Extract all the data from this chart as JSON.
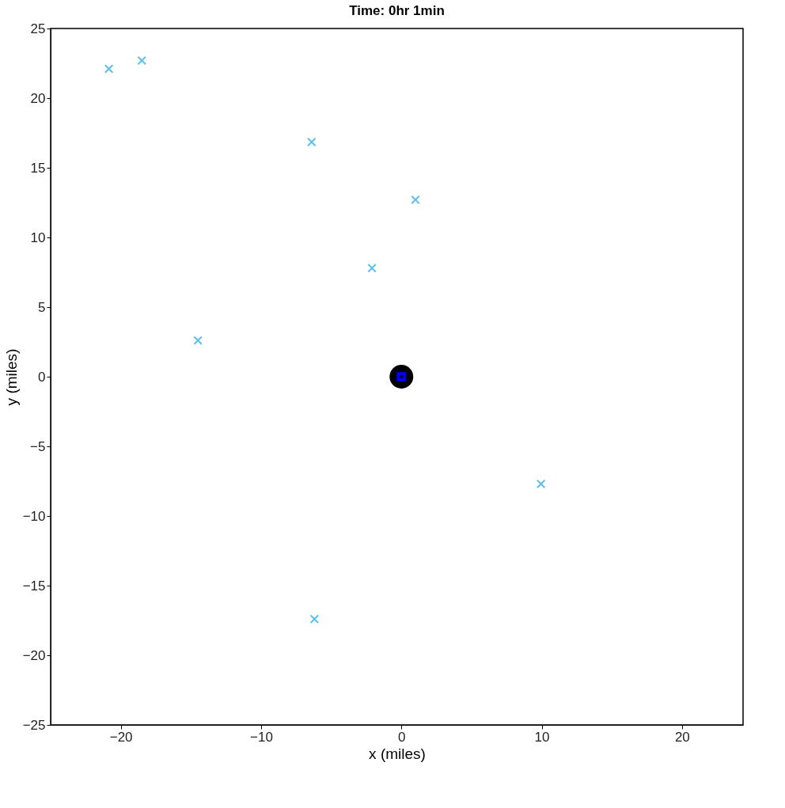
{
  "chart_data": {
    "type": "scatter",
    "title": "Time: 0hr  1min",
    "xlabel": "x (miles)",
    "ylabel": "y (miles)",
    "xlim": [
      -25,
      24.35
    ],
    "ylim": [
      -25,
      25
    ],
    "xticks": [
      -20,
      -10,
      0,
      10,
      20
    ],
    "yticks": [
      -25,
      -20,
      -15,
      -10,
      -5,
      0,
      5,
      10,
      15,
      20,
      25
    ],
    "grid": false,
    "series": [
      {
        "color": "#5bc0eb",
        "marker": "cross",
        "x": [
          -20.85,
          -18.5,
          -6.4,
          1.0,
          -2.1,
          -14.5,
          9.95,
          -6.2
        ],
        "values": [
          22.1,
          22.7,
          16.85,
          12.7,
          7.8,
          2.6,
          -7.7,
          -17.4
        ]
      },
      {
        "color": "#000000",
        "marker": "circle",
        "x": [
          0
        ],
        "values": [
          0
        ]
      },
      {
        "color": "#0000ff",
        "marker": "square",
        "x": [
          0
        ],
        "values": [
          0
        ]
      }
    ]
  }
}
